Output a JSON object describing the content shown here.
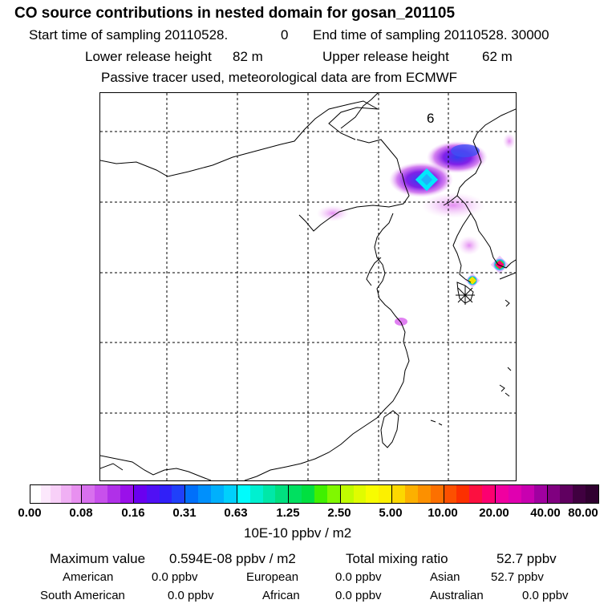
{
  "header": {
    "title": "CO  source contributions in nested domain for gosan_201105",
    "start_label": "Start time of sampling 20110528.",
    "start_hour": "0",
    "end_label": "End time of sampling 20110528. 30000",
    "lower_label": "Lower release height",
    "lower_value": "82 m",
    "upper_label": "Upper release height",
    "upper_value": "62 m",
    "tracer_note": "Passive tracer used, meteorological data are from ECMWF"
  },
  "map": {
    "panel_label": "6",
    "receptor_marker": "Gosan receptor"
  },
  "colorbar": {
    "ticks": [
      "0.00",
      "0.08",
      "0.16",
      "0.31",
      "0.63",
      "1.25",
      "2.50",
      "5.00",
      "10.00",
      "20.00",
      "40.00",
      "80.00"
    ],
    "unit": "10E-10 ppbv / m2",
    "colors": [
      [
        "#ffffff",
        "#fce8fc",
        "#f8d0f8",
        "#f0b0f4",
        "#e890f0"
      ],
      [
        "#d870ee",
        "#c850ec",
        "#b030e8",
        "#9a10ea"
      ],
      [
        "#6a00f0",
        "#5010f4",
        "#3020f8",
        "#2040fa"
      ],
      [
        "#0070fa",
        "#0090fc",
        "#00b0fc",
        "#00d0fc"
      ],
      [
        "#00fcfc",
        "#00f0d0",
        "#00e8a8",
        "#00e080"
      ],
      [
        "#00e060",
        "#00e040",
        "#40f000",
        "#80f800"
      ],
      [
        "#c0fc00",
        "#e0fc00",
        "#f8fc00",
        "#fcf000"
      ],
      [
        "#fcd800",
        "#fcb000",
        "#fc9000",
        "#fc7000"
      ],
      [
        "#fc5000",
        "#fc3000",
        "#fc1040",
        "#fc0070"
      ],
      [
        "#f000a0",
        "#e000b0",
        "#c800b0",
        "#a000a0"
      ],
      [
        "#800080",
        "#600060",
        "#400040",
        "#300030"
      ]
    ]
  },
  "stats": {
    "max_label": "Maximum value",
    "max_value": "0.594E-08 ppbv / m2",
    "total_label": "Total mixing ratio",
    "total_value": "52.7 ppbv",
    "regions": [
      {
        "name": "American",
        "value": "0.0 ppbv"
      },
      {
        "name": "European",
        "value": "0.0 ppbv"
      },
      {
        "name": "Asian",
        "value": "52.7 ppbv"
      },
      {
        "name": "South American",
        "value": "0.0 ppbv"
      },
      {
        "name": "African",
        "value": "0.0 ppbv"
      },
      {
        "name": "Australian",
        "value": "0.0 ppbv"
      }
    ]
  }
}
